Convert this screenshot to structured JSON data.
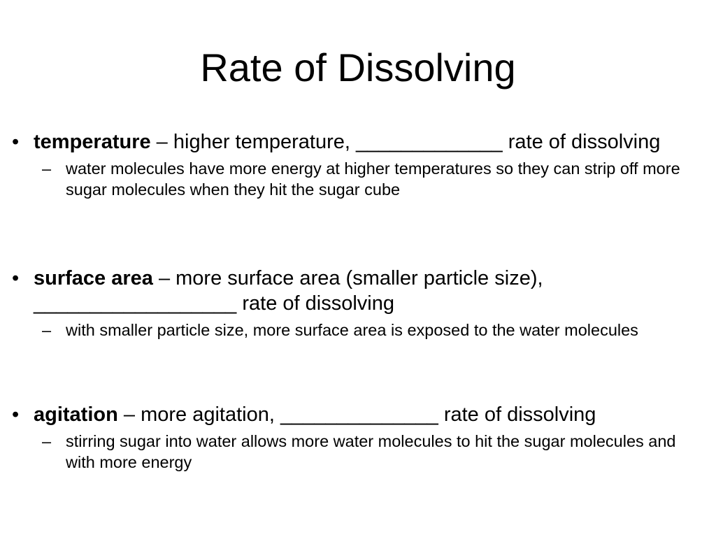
{
  "slide": {
    "title": "Rate of Dissolving",
    "bullet_marker": "•",
    "sub_marker": "–",
    "bullets": [
      {
        "term": "temperature",
        "text": " – higher temperature, _____________ rate of dissolving",
        "sub": "water molecules have more energy at higher temperatures so they can strip off more sugar molecules when they hit the sugar cube"
      },
      {
        "term": "surface area",
        "text": " – more surface area (smaller particle size), __________________ rate of dissolving",
        "sub": "with smaller particle size, more surface area is exposed to the water molecules"
      },
      {
        "term": "agitation",
        "text": " – more agitation, ______________ rate of dissolving",
        "sub": "stirring sugar into water allows more water molecules to hit the sugar molecules and with more energy"
      }
    ]
  }
}
